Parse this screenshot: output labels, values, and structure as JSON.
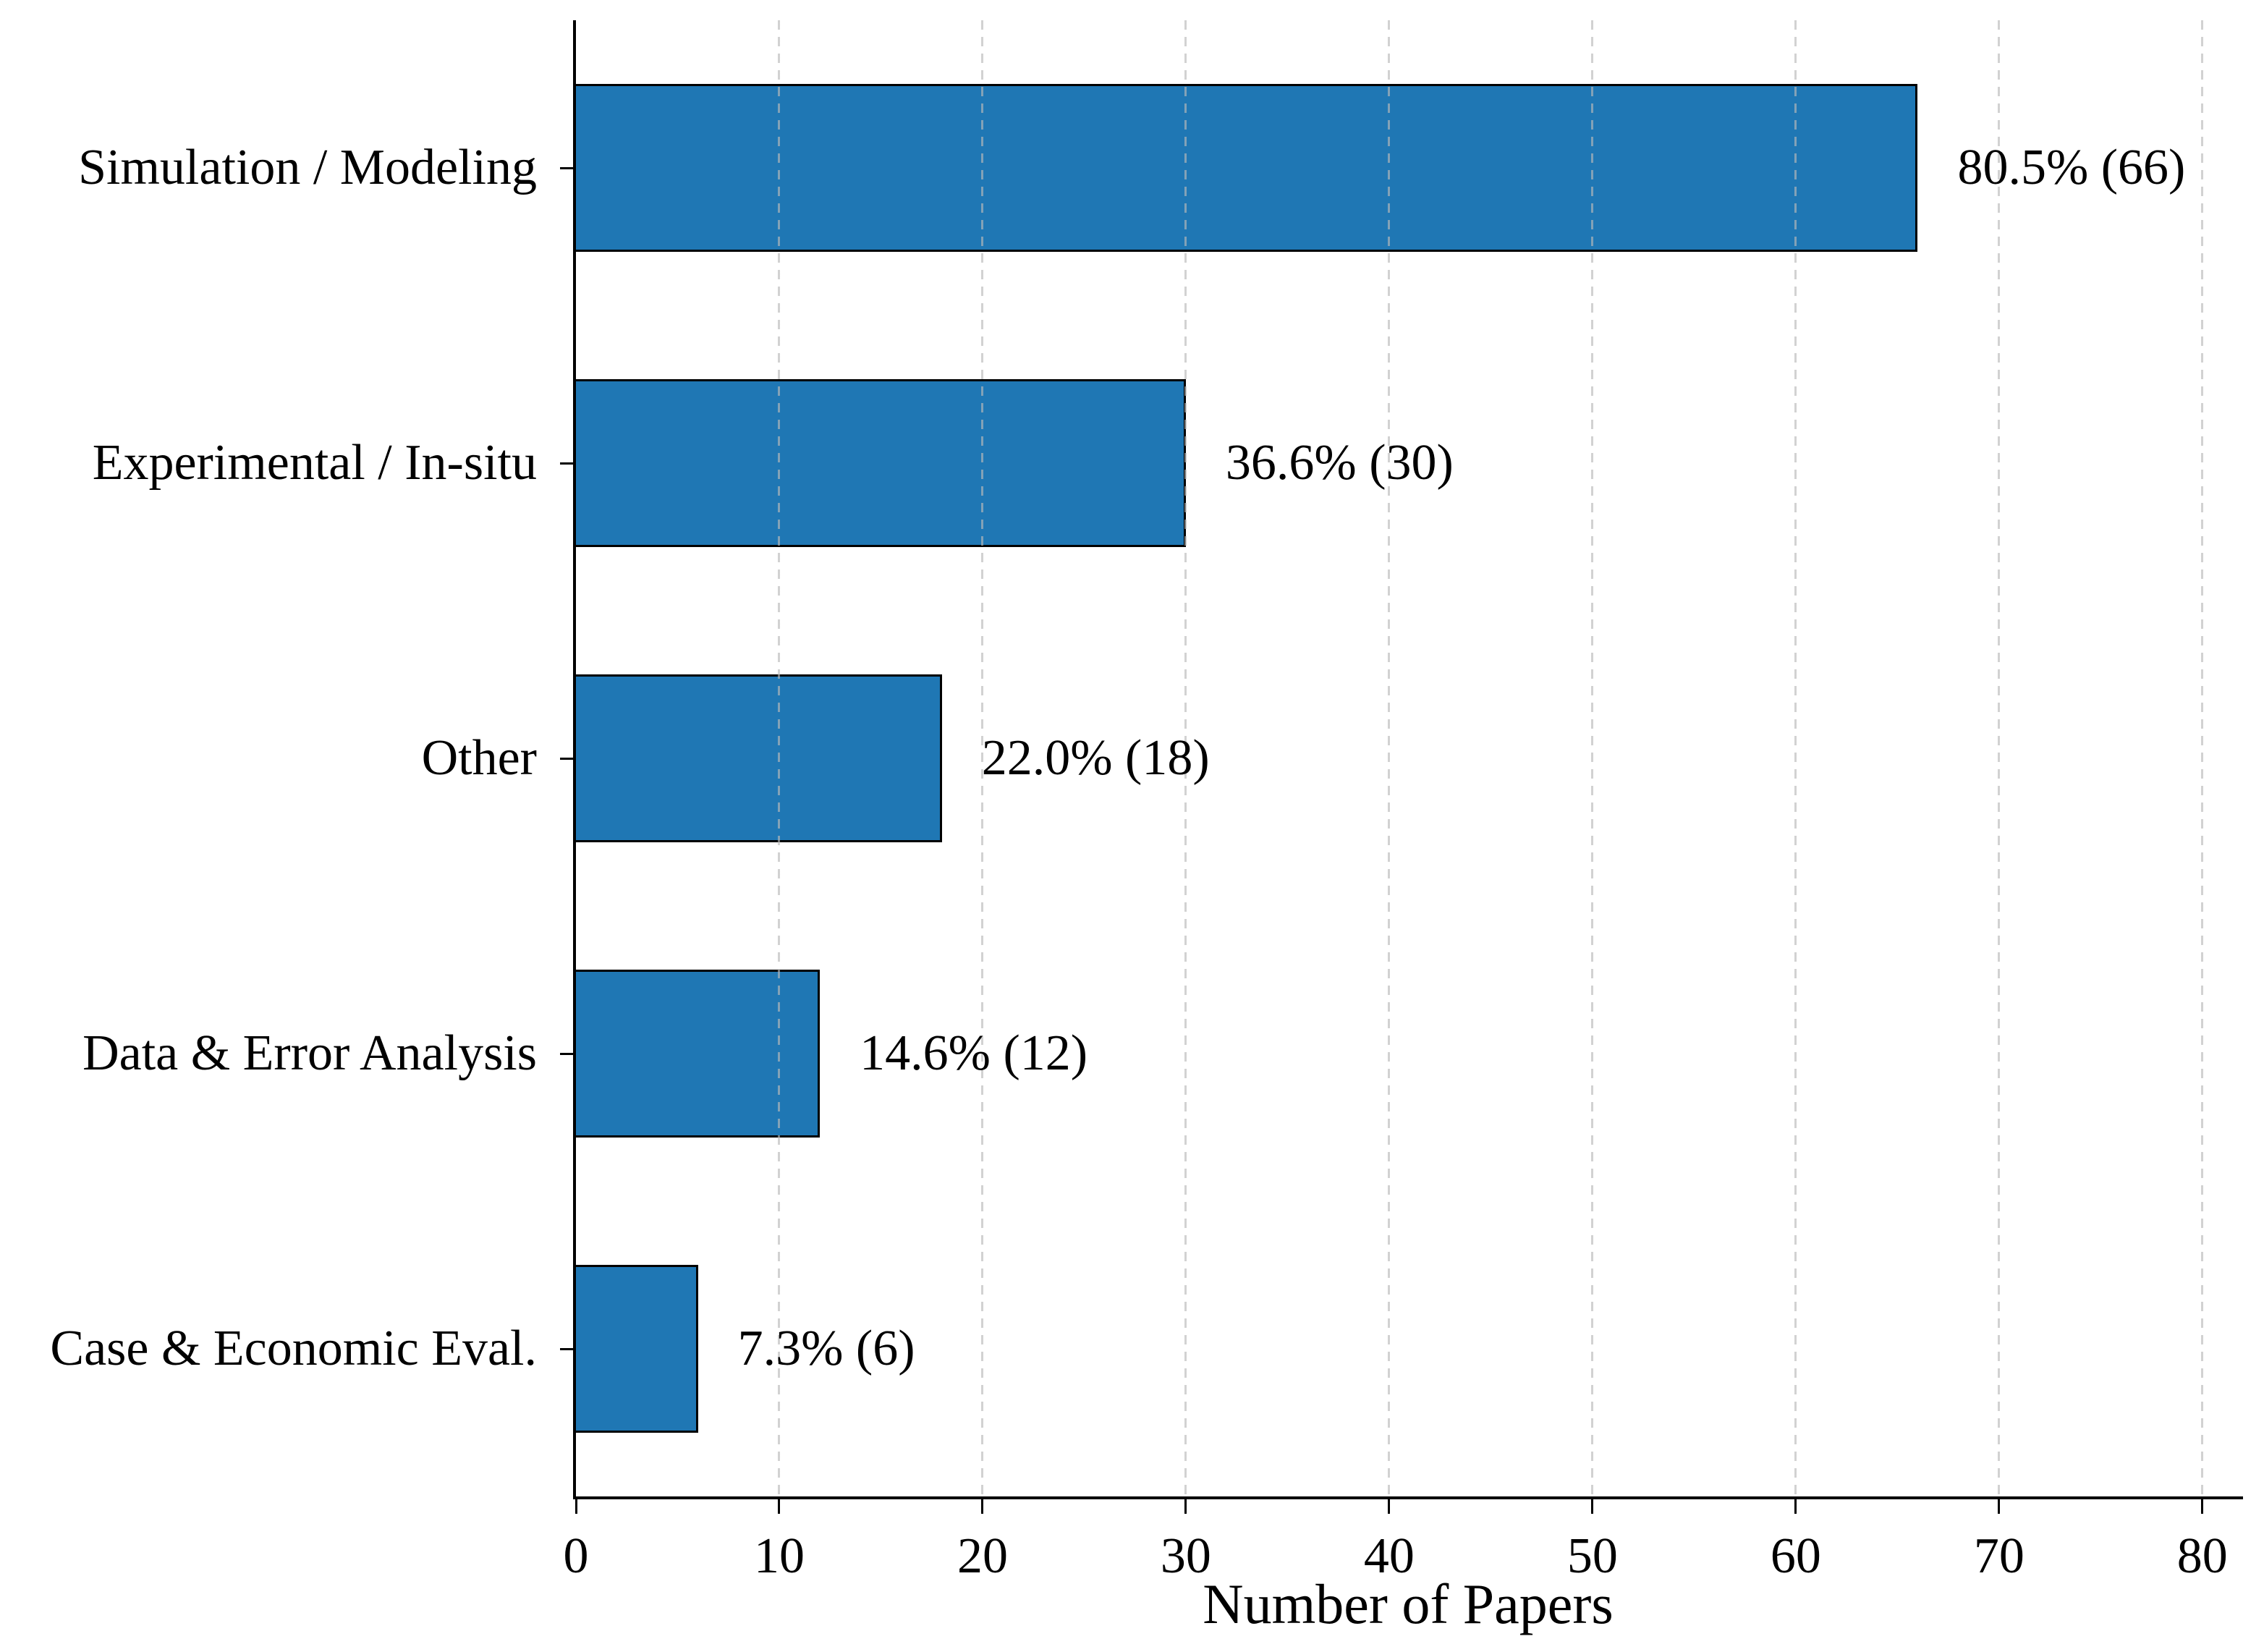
{
  "chart_data": {
    "type": "bar",
    "orientation": "horizontal",
    "categories": [
      "Simulation / Modeling",
      "Experimental / In-situ",
      "Other",
      "Data & Error Analysis",
      "Case & Economic Eval."
    ],
    "values": [
      66,
      30,
      18,
      12,
      6
    ],
    "value_labels": [
      "80.5% (66)",
      "36.6% (30)",
      "22.0% (18)",
      "14.6% (12)",
      "7.3% (6)"
    ],
    "title": "",
    "xlabel": "Number of Papers",
    "ylabel": "",
    "xticks": [
      0,
      10,
      20,
      30,
      40,
      50,
      60,
      70,
      80
    ],
    "xlim": [
      0,
      82
    ],
    "grid": "vertical-dashed-over-bars",
    "legend": "none",
    "bar_color": "#1f77b4",
    "bar_edge_color": "#000000",
    "gridline_color": "#b9b9b9",
    "text_color": "#000000",
    "background_color": "#ffffff"
  }
}
